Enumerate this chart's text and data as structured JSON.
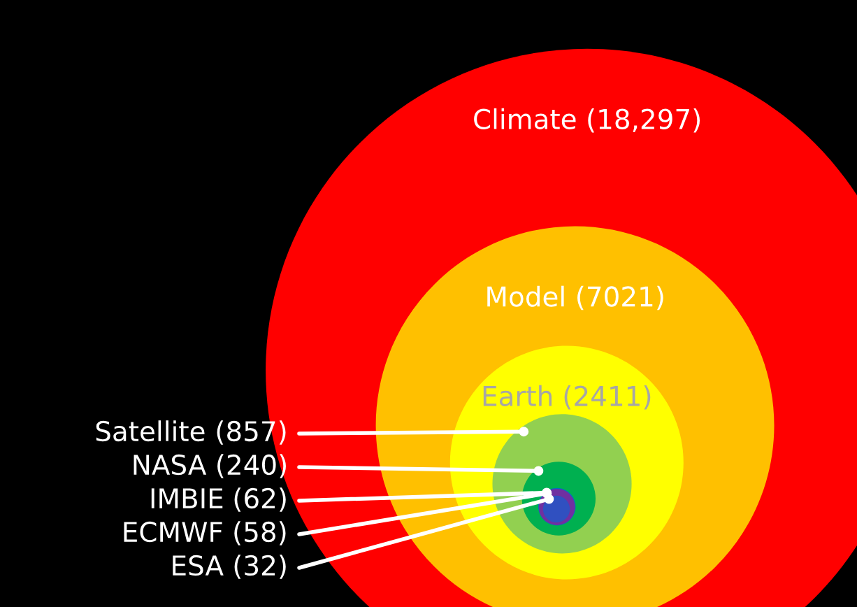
{
  "chart_data": {
    "type": "other",
    "categories": [
      "Climate",
      "Model",
      "Earth",
      "Satellite",
      "NASA",
      "IMBIE",
      "ECMWF",
      "ESA"
    ],
    "values": [
      18297,
      7021,
      2411,
      857,
      240,
      62,
      58,
      32
    ],
    "value_labels": [
      "(18,297)",
      "(7021)",
      "(2411)",
      "(857)",
      "(240)",
      "(62)",
      "(58)",
      "(32)"
    ],
    "colors": [
      "#ff0000",
      "#ffc000",
      "#ffff00",
      "#92d050",
      "#00b050",
      "#0070c0",
      "#7030a0",
      "#3050c0"
    ]
  }
}
